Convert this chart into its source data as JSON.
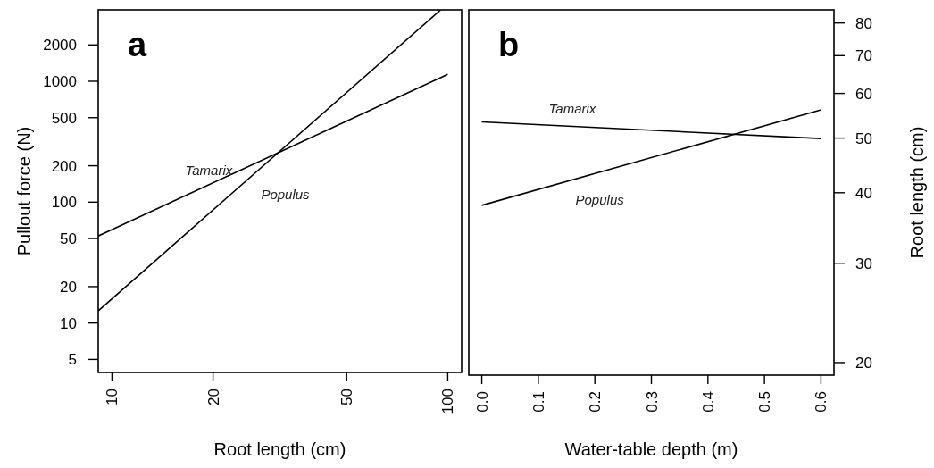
{
  "chart_data": [
    {
      "type": "line",
      "title": "a",
      "xlabel": "Root length (cm)",
      "ylabel": "Pullout force (N)",
      "log": "xy",
      "xlim": [
        9.1,
        110
      ],
      "xticks": [
        10,
        20,
        50,
        100
      ],
      "ylim": [
        3.9,
        3900
      ],
      "yticks": [
        5,
        10,
        20,
        50,
        100,
        200,
        500,
        1000,
        2000
      ],
      "series": [
        {
          "name": "Tamarix",
          "color": "#000000",
          "x": [
            9.1,
            100
          ],
          "values": [
            52.5,
            1140
          ]
        },
        {
          "name": "Populus",
          "color": "#000000",
          "x": [
            9.1,
            95
          ],
          "values": [
            12.6,
            3870
          ]
        }
      ]
    },
    {
      "type": "line",
      "title": "b",
      "xlabel": "Water-table depth (m)",
      "y2label": "Root length (cm)",
      "log": "y2",
      "xlim": [
        -0.023,
        0.623
      ],
      "xticks": [
        {
          "value": 0,
          "label": "0.0"
        },
        0.1,
        0.2,
        0.3,
        0.4,
        0.5,
        0.6
      ],
      "y2lim": [
        19,
        84.4
      ],
      "y2ticks": [
        20,
        30,
        40,
        50,
        60,
        70,
        80
      ],
      "series": [
        {
          "name": "Tamarix",
          "color": "#000000",
          "axis": "y2",
          "x": [
            0,
            0.6
          ],
          "values": [
            53.4,
            49.9
          ]
        },
        {
          "name": "Populus",
          "color": "#000000",
          "axis": "y2",
          "x": [
            0,
            0.6
          ],
          "values": [
            38,
            56.1
          ]
        }
      ]
    }
  ]
}
